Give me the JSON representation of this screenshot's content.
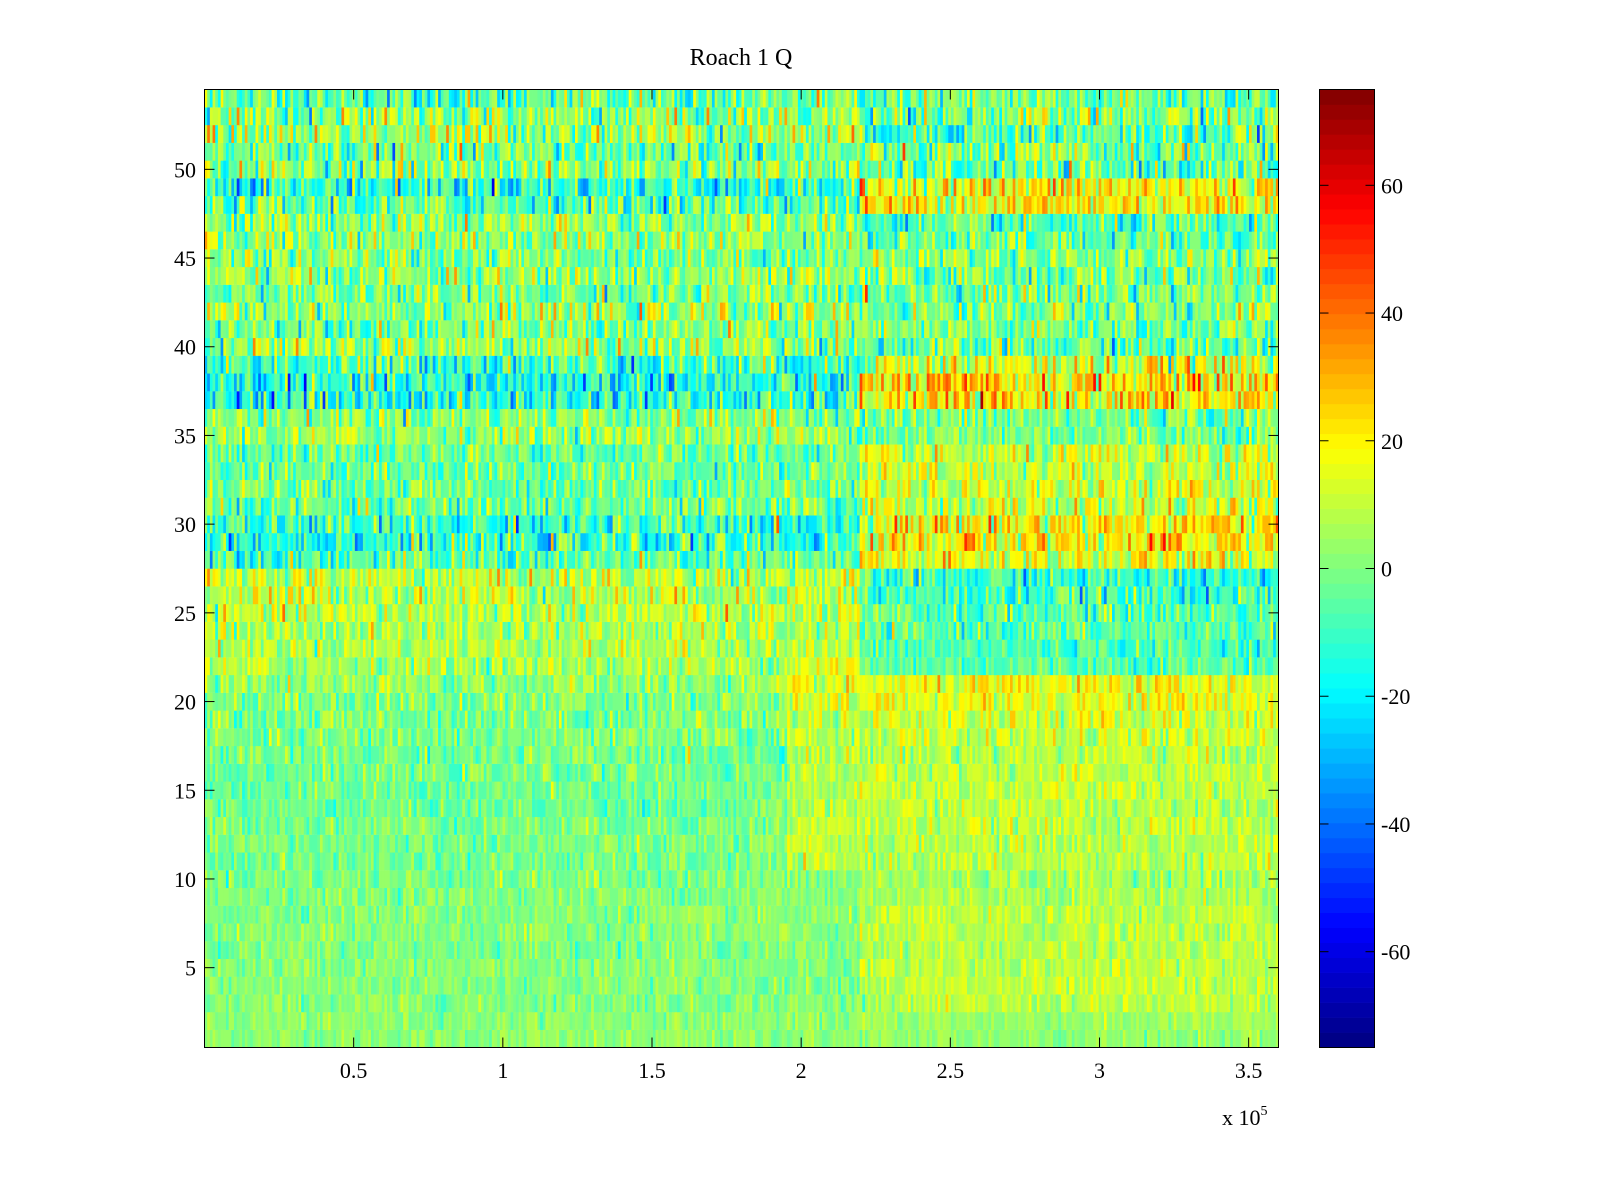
{
  "chart_data": {
    "type": "heatmap",
    "title": "Roach 1 Q",
    "xlabel": "",
    "ylabel": "",
    "x_multiplier_label": "x 10",
    "x_multiplier_exponent": "5",
    "xlim": [
      0,
      3.6
    ],
    "ylim": [
      0.5,
      54.5
    ],
    "xticks": [
      "0.5",
      "1",
      "1.5",
      "2",
      "2.5",
      "3",
      "3.5"
    ],
    "yticks": [
      "5",
      "10",
      "15",
      "20",
      "25",
      "30",
      "35",
      "40",
      "45",
      "50"
    ],
    "colorbar": {
      "colormap": "jet",
      "clim": [
        -75,
        75
      ],
      "levels": 64,
      "ticks": [
        "60",
        "40",
        "20",
        "0",
        "-20",
        "-40",
        "-60"
      ]
    },
    "n_rows": 54,
    "n_columns": 400,
    "row_profiles_note": "per row: [mean before x=2.2e5, mean after x=2.2e5, noise spread]",
    "row_profiles": [
      [
        2,
        3,
        4
      ],
      [
        2,
        4,
        4
      ],
      [
        1,
        8,
        5
      ],
      [
        1,
        9,
        5
      ],
      [
        1,
        9,
        5
      ],
      [
        0,
        8,
        5
      ],
      [
        1,
        8,
        5
      ],
      [
        1,
        8,
        5
      ],
      [
        1,
        7,
        5
      ],
      [
        0,
        5,
        6
      ],
      [
        -2,
        8,
        6
      ],
      [
        -1,
        8,
        6
      ],
      [
        0,
        9,
        6
      ],
      [
        -3,
        9,
        6
      ],
      [
        -3,
        10,
        6
      ],
      [
        -2,
        9,
        6
      ],
      [
        -2,
        8,
        7
      ],
      [
        -1,
        10,
        7
      ],
      [
        0,
        12,
        8
      ],
      [
        1,
        16,
        8
      ],
      [
        2,
        15,
        8
      ],
      [
        6,
        -5,
        8
      ],
      [
        8,
        -8,
        8
      ],
      [
        6,
        -6,
        9
      ],
      [
        8,
        -6,
        10
      ],
      [
        10,
        -10,
        11
      ],
      [
        9,
        -12,
        11
      ],
      [
        -6,
        14,
        12
      ],
      [
        -12,
        20,
        13
      ],
      [
        -12,
        20,
        13
      ],
      [
        -4,
        10,
        11
      ],
      [
        -2,
        12,
        10
      ],
      [
        -2,
        10,
        10
      ],
      [
        -4,
        8,
        10
      ],
      [
        4,
        0,
        10
      ],
      [
        2,
        -2,
        11
      ],
      [
        -14,
        20,
        14
      ],
      [
        -16,
        22,
        14
      ],
      [
        -8,
        12,
        14
      ],
      [
        4,
        -6,
        13
      ],
      [
        0,
        -2,
        12
      ],
      [
        4,
        0,
        12
      ],
      [
        -2,
        0,
        12
      ],
      [
        2,
        -2,
        12
      ],
      [
        0,
        2,
        11
      ],
      [
        4,
        -4,
        12
      ],
      [
        2,
        -10,
        12
      ],
      [
        -6,
        20,
        13
      ],
      [
        -12,
        18,
        14
      ],
      [
        2,
        -6,
        13
      ],
      [
        -4,
        -2,
        14
      ],
      [
        6,
        -6,
        14
      ],
      [
        2,
        0,
        14
      ],
      [
        -4,
        -4,
        13
      ]
    ]
  }
}
